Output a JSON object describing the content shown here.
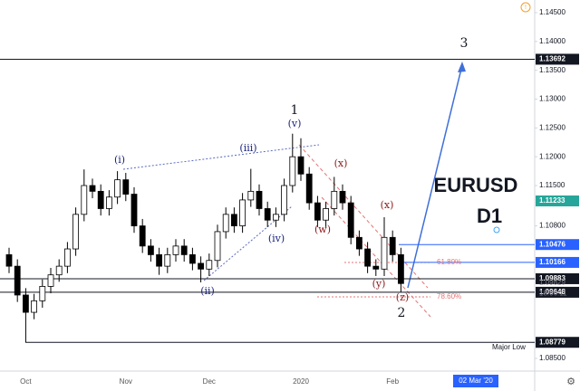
{
  "chart_data": {
    "type": "candlestick",
    "title": "EURUSD",
    "subtitle": "D1",
    "categories": [
      null,
      null,
      "Oct",
      null,
      null,
      null,
      null,
      null,
      null,
      null,
      null,
      null,
      null,
      null,
      "Nov",
      null,
      null,
      null,
      null,
      null,
      null,
      null,
      null,
      null,
      "Dec",
      null,
      null,
      null,
      null,
      null,
      null,
      null,
      null,
      null,
      null,
      "2020",
      null,
      null,
      null,
      null,
      null,
      null,
      null,
      null,
      null,
      null,
      "Feb",
      null
    ],
    "open": [
      1.103,
      1.101,
      1.096,
      1.093,
      1.095,
      1.0975,
      1.0995,
      1.101,
      1.104,
      1.11,
      1.115,
      1.114,
      1.111,
      1.113,
      1.116,
      1.1135,
      1.108,
      1.1045,
      1.103,
      1.101,
      1.103,
      1.1045,
      1.103,
      1.1015,
      1.1005,
      1.102,
      1.107,
      1.11,
      1.108,
      1.1125,
      1.114,
      1.111,
      1.109,
      1.11,
      1.115,
      1.12,
      1.117,
      1.112,
      1.109,
      1.111,
      1.114,
      1.112,
      1.106,
      1.104,
      1.101,
      1.1005,
      1.106,
      1.103
    ],
    "high": [
      1.1042,
      1.1022,
      1.0972,
      1.0962,
      1.0987,
      1.1007,
      1.1022,
      1.1052,
      1.1112,
      1.1178,
      1.1162,
      1.1152,
      1.1142,
      1.1175,
      1.1172,
      1.1147,
      1.1092,
      1.1057,
      1.1042,
      1.1042,
      1.1057,
      1.1057,
      1.1042,
      1.1027,
      1.1032,
      1.1082,
      1.1112,
      1.1112,
      1.1137,
      1.1179,
      1.1152,
      1.1122,
      1.1112,
      1.1162,
      1.124,
      1.1232,
      1.1182,
      1.1132,
      1.1122,
      1.1165,
      1.1152,
      1.1132,
      1.1072,
      1.1052,
      1.1022,
      1.1095,
      1.1072,
      1.1042
    ],
    "low": [
      1.0998,
      1.0948,
      1.0878,
      1.0918,
      1.0938,
      1.0963,
      1.0983,
      1.0998,
      1.1028,
      1.1088,
      1.1128,
      1.1098,
      1.1098,
      1.1118,
      1.1123,
      1.1068,
      1.1033,
      1.1018,
      1.0995,
      1.0998,
      1.1018,
      1.1018,
      1.1003,
      1.0982,
      1.0993,
      1.1008,
      1.1058,
      1.1068,
      1.1068,
      1.1113,
      1.1098,
      1.1078,
      1.1078,
      1.1088,
      1.1138,
      1.1158,
      1.1108,
      1.1078,
      1.1078,
      1.1098,
      1.1108,
      1.1048,
      1.1028,
      1.0998,
      1.0993,
      1.0993,
      1.1018,
      1.0965
    ],
    "close": [
      1.101,
      1.096,
      1.093,
      1.095,
      1.0975,
      1.0995,
      1.101,
      1.104,
      1.11,
      1.115,
      1.114,
      1.111,
      1.113,
      1.116,
      1.1135,
      1.108,
      1.1045,
      1.103,
      1.101,
      1.103,
      1.1045,
      1.103,
      1.1015,
      1.1005,
      1.102,
      1.107,
      1.11,
      1.108,
      1.1125,
      1.114,
      1.111,
      1.109,
      1.11,
      1.115,
      1.12,
      1.117,
      1.112,
      1.109,
      1.111,
      1.114,
      1.112,
      1.106,
      1.104,
      1.101,
      1.1005,
      1.106,
      1.103,
      1.098
    ],
    "ylim": [
      1.0828,
      1.1472
    ],
    "yticks": [
      {
        "value": 1.145,
        "label": "1.14500"
      },
      {
        "value": 1.14,
        "label": "1.14000"
      },
      {
        "value": 1.135,
        "label": "1.13500"
      },
      {
        "value": 1.13,
        "label": "1.13000"
      },
      {
        "value": 1.125,
        "label": "1.12500"
      },
      {
        "value": 1.12,
        "label": "1.12000"
      },
      {
        "value": 1.115,
        "label": "1.11500"
      },
      {
        "value": 1.108,
        "label": "1.10800"
      },
      {
        "value": 1.085,
        "label": "1.08500"
      }
    ],
    "price_lines": [
      {
        "value": 1.13692,
        "color": "#131722",
        "line": "full"
      },
      {
        "value": 1.11233,
        "color": "#26a69a",
        "line": "none"
      },
      {
        "value": 1.10476,
        "color": "#2962ff",
        "line": "partial"
      },
      {
        "value": 1.10166,
        "color": "#2962ff",
        "line": "partial"
      },
      {
        "value": 1.09883,
        "color": "#131722",
        "line": "full"
      },
      {
        "value": 1.09648,
        "color": "#131722",
        "line": "full"
      },
      {
        "value": 1.08779,
        "color": "#131722",
        "line": "full"
      }
    ],
    "last_price": 1.09829,
    "countdown": "18:06:11",
    "cursor_date": "02 Mar '20",
    "annotations": {
      "major_low": "Major Low",
      "fib_618": "61.80%",
      "fib_786": "78.60%",
      "w1": "1",
      "w2": "2",
      "w3": "3",
      "i": "(i)",
      "ii": "(ii)",
      "iii": "(iii)",
      "iv": "(iv)",
      "v": "(v)",
      "w": "(w)",
      "x1": "(x)",
      "y": "(y)",
      "x2": "(x)",
      "z": "(z)"
    }
  }
}
